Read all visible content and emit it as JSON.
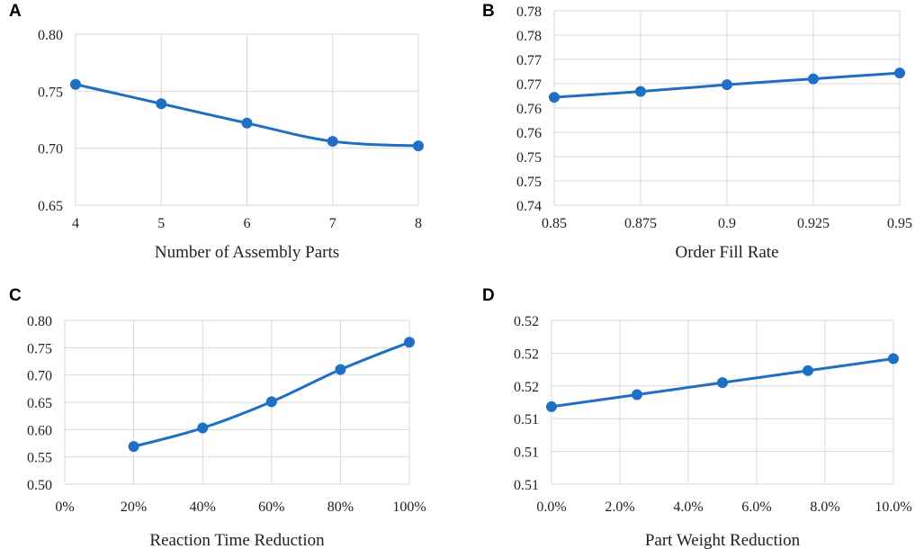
{
  "chart_data": [
    {
      "panel": "A",
      "type": "line",
      "xlabel": "Number of Assembly Parts",
      "ylabel": "",
      "x": [
        4,
        5,
        6,
        7,
        8
      ],
      "xticks": [
        "4",
        "5",
        "6",
        "7",
        "8"
      ],
      "xlim": [
        4,
        8
      ],
      "values": [
        0.756,
        0.739,
        0.722,
        0.706,
        0.702
      ],
      "yticks": [
        "0.80",
        "0.75",
        "0.70",
        "0.65"
      ],
      "ylim": [
        0.65,
        0.8
      ],
      "color": "#1f6fc5",
      "smooth": true,
      "grid": true
    },
    {
      "panel": "B",
      "type": "line",
      "xlabel": "Order Fill Rate",
      "ylabel": "",
      "x": [
        0.85,
        0.875,
        0.9,
        0.925,
        0.95
      ],
      "xticks": [
        "0.85",
        "0.875",
        "0.9",
        "0.925",
        "0.95"
      ],
      "xlim": [
        0.85,
        0.95
      ],
      "values": [
        0.7622,
        0.7634,
        0.7648,
        0.766,
        0.7672
      ],
      "yticks": [
        "0.78",
        "0.78",
        "0.77",
        "0.77",
        "0.76",
        "0.76",
        "0.75",
        "0.75",
        "0.74"
      ],
      "ylim": [
        0.74,
        0.78
      ],
      "color": "#1f6fc5",
      "smooth": true,
      "grid": true
    },
    {
      "panel": "C",
      "type": "line",
      "xlabel": "Reaction Time Reduction",
      "ylabel": "",
      "x": [
        20,
        40,
        60,
        80,
        100
      ],
      "xticks": [
        "0%",
        "20%",
        "40%",
        "60%",
        "80%",
        "100%"
      ],
      "xlim": [
        0,
        100
      ],
      "values": [
        0.569,
        0.603,
        0.651,
        0.71,
        0.76
      ],
      "yticks": [
        "0.80",
        "0.75",
        "0.70",
        "0.65",
        "0.60",
        "0.55",
        "0.50"
      ],
      "ylim": [
        0.5,
        0.8
      ],
      "color": "#1f6fc5",
      "smooth": true,
      "grid": true
    },
    {
      "panel": "D",
      "type": "line",
      "xlabel": "Part Weight Reduction",
      "ylabel": "",
      "x": [
        0,
        2.5,
        5,
        7.5,
        10
      ],
      "xticks": [
        "0.0%",
        "2.0%",
        "4.0%",
        "6.0%",
        "8.0%",
        "10.0%"
      ],
      "xlim": [
        0,
        10
      ],
      "values": [
        0.5146,
        0.5157,
        0.5168,
        0.5179,
        0.519
      ],
      "yticks": [
        "0.52",
        "0.52",
        "0.52",
        "0.51",
        "0.51",
        "0.51"
      ],
      "ylim": [
        0.5075,
        0.5225
      ],
      "color": "#1f6fc5",
      "smooth": true,
      "grid": true
    }
  ]
}
